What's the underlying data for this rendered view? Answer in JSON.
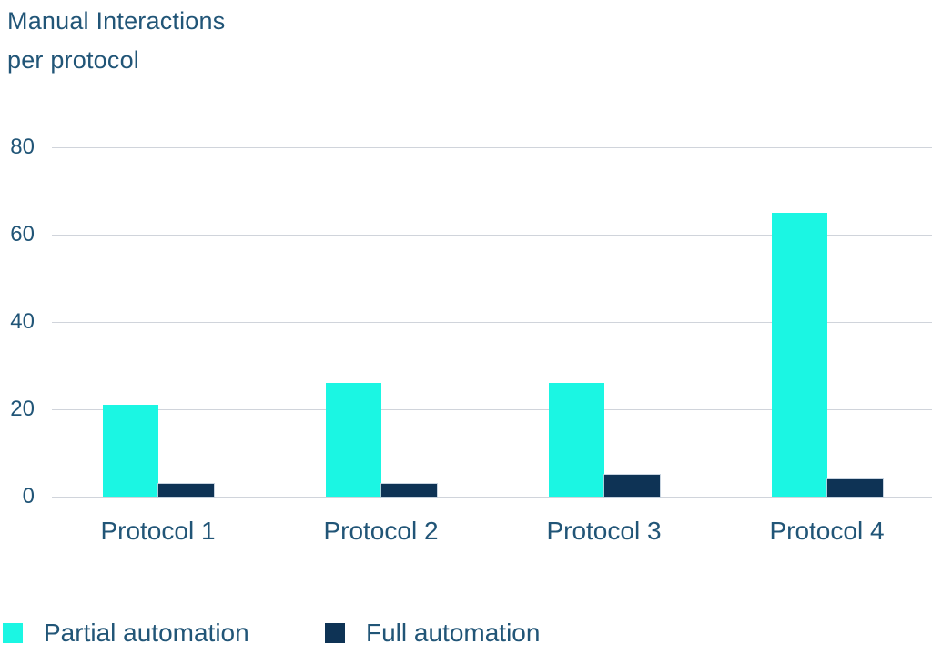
{
  "title": {
    "line1": "Manual Interactions",
    "line2": "per protocol"
  },
  "chart_data": {
    "type": "bar",
    "title": "Manual Interactions per protocol",
    "categories": [
      "Protocol 1",
      "Protocol 2",
      "Protocol 3",
      "Protocol 4"
    ],
    "series": [
      {
        "name": "Partial automation",
        "color": "#1BF6E3",
        "values": [
          21,
          26,
          26,
          65
        ]
      },
      {
        "name": "Full automation",
        "color": "#0E3355",
        "values": [
          3,
          3,
          5,
          4
        ]
      }
    ],
    "xlabel": "",
    "ylabel": "",
    "ylim": [
      0,
      80
    ],
    "yticks": [
      0,
      20,
      40,
      60,
      80
    ],
    "grid": true,
    "legend_position": "bottom"
  },
  "colors": {
    "text": "#215577",
    "gridline": "#D0D4DB",
    "background": "#FFFFFF",
    "partial_automation": "#1BF6E3",
    "full_automation": "#0E3355"
  }
}
